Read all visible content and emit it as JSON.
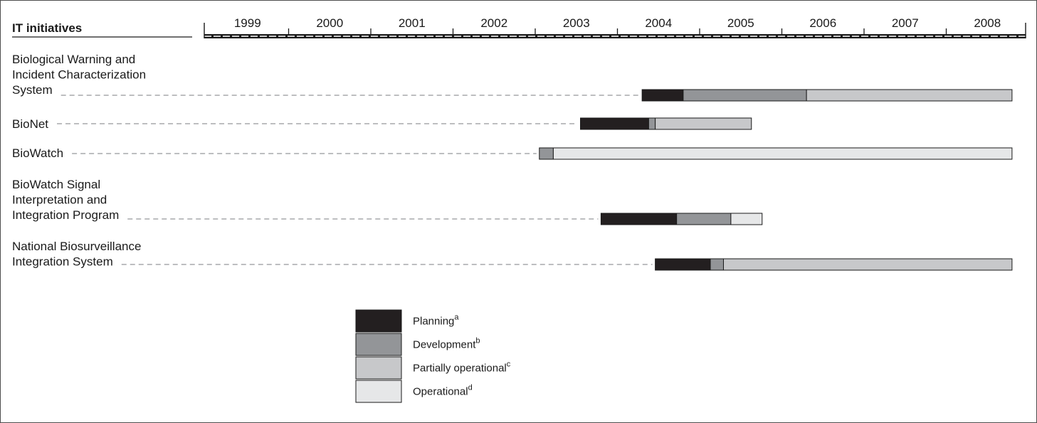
{
  "chart_data": {
    "type": "timeline",
    "title": "",
    "header_label": "IT initiatives",
    "x_ticks": [
      "1999",
      "2000",
      "2001",
      "2002",
      "2003",
      "2004",
      "2005",
      "2006",
      "2007",
      "2008"
    ],
    "xlim": [
      1999,
      2009
    ],
    "phases": [
      {
        "key": "planning",
        "name": "Planning",
        "sup": "a",
        "color": "#231f20"
      },
      {
        "key": "development",
        "name": "Development",
        "sup": "b",
        "color": "#939598"
      },
      {
        "key": "partial",
        "name": "Partially operational",
        "sup": "c",
        "color": "#c7c8ca"
      },
      {
        "key": "operational",
        "name": "Operational",
        "sup": "d",
        "color": "#e6e7e8"
      }
    ],
    "initiatives": [
      {
        "name": "Biological Warning and Incident Characterization System",
        "label_lines": [
          "Biological Warning and",
          "Incident Characterization",
          "System"
        ],
        "segments": [
          {
            "phase": "planning",
            "start": 2004.3,
            "end": 2004.8
          },
          {
            "phase": "development",
            "start": 2004.8,
            "end": 2006.3
          },
          {
            "phase": "partial",
            "start": 2006.3,
            "end": 2008.8
          }
        ]
      },
      {
        "name": "BioNet",
        "label_lines": [
          "BioNet"
        ],
        "segments": [
          {
            "phase": "planning",
            "start": 2003.55,
            "end": 2004.38
          },
          {
            "phase": "development",
            "start": 2004.38,
            "end": 2004.46
          },
          {
            "phase": "partial",
            "start": 2004.46,
            "end": 2005.63
          }
        ]
      },
      {
        "name": "BioWatch",
        "label_lines": [
          "BioWatch"
        ],
        "segments": [
          {
            "phase": "development",
            "start": 2003.05,
            "end": 2003.22
          },
          {
            "phase": "operational",
            "start": 2003.22,
            "end": 2008.8
          }
        ]
      },
      {
        "name": "BioWatch Signal Interpretation and Integration Program",
        "label_lines": [
          "BioWatch Signal",
          "Interpretation and",
          "Integration Program"
        ],
        "segments": [
          {
            "phase": "planning",
            "start": 2003.8,
            "end": 2004.72
          },
          {
            "phase": "development",
            "start": 2004.72,
            "end": 2005.38
          },
          {
            "phase": "operational",
            "start": 2005.38,
            "end": 2005.76
          }
        ]
      },
      {
        "name": "National Biosurveillance Integration System",
        "label_lines": [
          "National Biosurveillance",
          "Integration System"
        ],
        "segments": [
          {
            "phase": "planning",
            "start": 2004.46,
            "end": 2005.13
          },
          {
            "phase": "development",
            "start": 2005.13,
            "end": 2005.29
          },
          {
            "phase": "partial",
            "start": 2005.29,
            "end": 2008.8
          }
        ]
      }
    ]
  }
}
